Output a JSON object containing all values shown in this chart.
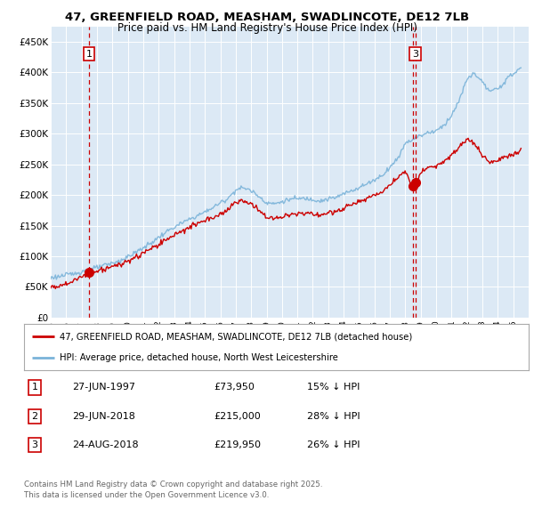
{
  "title_line1": "47, GREENFIELD ROAD, MEASHAM, SWADLINCOTE, DE12 7LB",
  "title_line2": "Price paid vs. HM Land Registry's House Price Index (HPI)",
  "plot_bg_color": "#dce9f5",
  "hpi_color": "#7ab3d9",
  "price_color": "#cc0000",
  "annotation_color": "#cc0000",
  "ylim": [
    0,
    475000
  ],
  "yticks": [
    0,
    50000,
    100000,
    150000,
    200000,
    250000,
    300000,
    350000,
    400000,
    450000
  ],
  "ytick_labels": [
    "£0",
    "£50K",
    "£100K",
    "£150K",
    "£200K",
    "£250K",
    "£300K",
    "£350K",
    "£400K",
    "£450K"
  ],
  "xlim_start": 1995.0,
  "xlim_end": 2026.0,
  "xtick_years": [
    1995,
    1996,
    1997,
    1998,
    1999,
    2000,
    2001,
    2002,
    2003,
    2004,
    2005,
    2006,
    2007,
    2008,
    2009,
    2010,
    2011,
    2012,
    2013,
    2014,
    2015,
    2016,
    2017,
    2018,
    2019,
    2020,
    2021,
    2022,
    2023,
    2024,
    2025
  ],
  "sale_dates": [
    1997.49,
    2018.49,
    2018.65
  ],
  "sale_prices": [
    73950,
    215000,
    219950
  ],
  "sale_labels": [
    "1",
    "2",
    "3"
  ],
  "annotation_show": [
    true,
    false,
    true
  ],
  "legend_line1": "47, GREENFIELD ROAD, MEASHAM, SWADLINCOTE, DE12 7LB (detached house)",
  "legend_line2": "HPI: Average price, detached house, North West Leicestershire",
  "table_rows": [
    [
      "1",
      "27-JUN-1997",
      "£73,950",
      "15% ↓ HPI"
    ],
    [
      "2",
      "29-JUN-2018",
      "£215,000",
      "28% ↓ HPI"
    ],
    [
      "3",
      "24-AUG-2018",
      "£219,950",
      "26% ↓ HPI"
    ]
  ],
  "footer_text": "Contains HM Land Registry data © Crown copyright and database right 2025.\nThis data is licensed under the Open Government Licence v3.0."
}
